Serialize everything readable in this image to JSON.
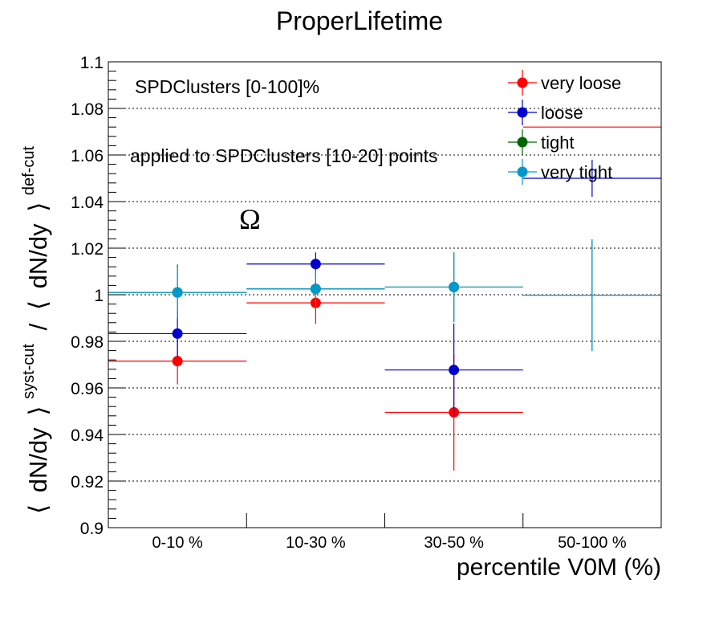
{
  "chart_data": {
    "type": "scatter",
    "title": "ProperLifetime",
    "xlabel": "percentile V0M (%)",
    "ylabel_parts": {
      "left_bracket": "⟨",
      "num": "dN/dy",
      "right_bracket": "⟩",
      "num_sup": "syst-cut",
      "slash": "/",
      "den_left_bracket": "⟨",
      "den": "dN/dy",
      "den_right_bracket": "⟩",
      "den_sup": "def-cut"
    },
    "categories": [
      "0-10 %",
      "10-30 %",
      "30-50 %",
      "50-100 %"
    ],
    "ylim": [
      0.9,
      1.1
    ],
    "yticks": [
      "0.9",
      "0.92",
      "0.94",
      "0.96",
      "0.98",
      "1",
      "1.02",
      "1.04",
      "1.06",
      "1.08",
      "1.1"
    ],
    "grid": "horizontal",
    "legend_position": "top-right",
    "annotations": {
      "cut_label": "SPDClusters [0-100]%",
      "applied_label": "applied to SPDClusters [10-20] points",
      "particle": "Ω"
    },
    "series": [
      {
        "name": "very loose",
        "color": "#ff0000",
        "values": [
          0.9715,
          0.9965,
          0.9495,
          1.072
        ],
        "errors": [
          0.01,
          0.009,
          0.025,
          null
        ]
      },
      {
        "name": "loose",
        "color": "#0000cc",
        "values": [
          0.9833,
          1.0132,
          0.9677,
          1.05
        ],
        "errors": [
          0.01,
          0.005,
          0.02,
          0.008
        ]
      },
      {
        "name": "tight",
        "color": "#006600",
        "values": [
          1.001,
          1.0025,
          1.0033,
          0.9998
        ],
        "errors": [
          0.012,
          0.008,
          0.015,
          0.024
        ]
      },
      {
        "name": "very tight",
        "color": "#0099cc",
        "values": [
          1.001,
          1.0025,
          1.0033,
          0.9998
        ],
        "errors": [
          0.011,
          0.008,
          0.015,
          0.024
        ]
      }
    ]
  }
}
